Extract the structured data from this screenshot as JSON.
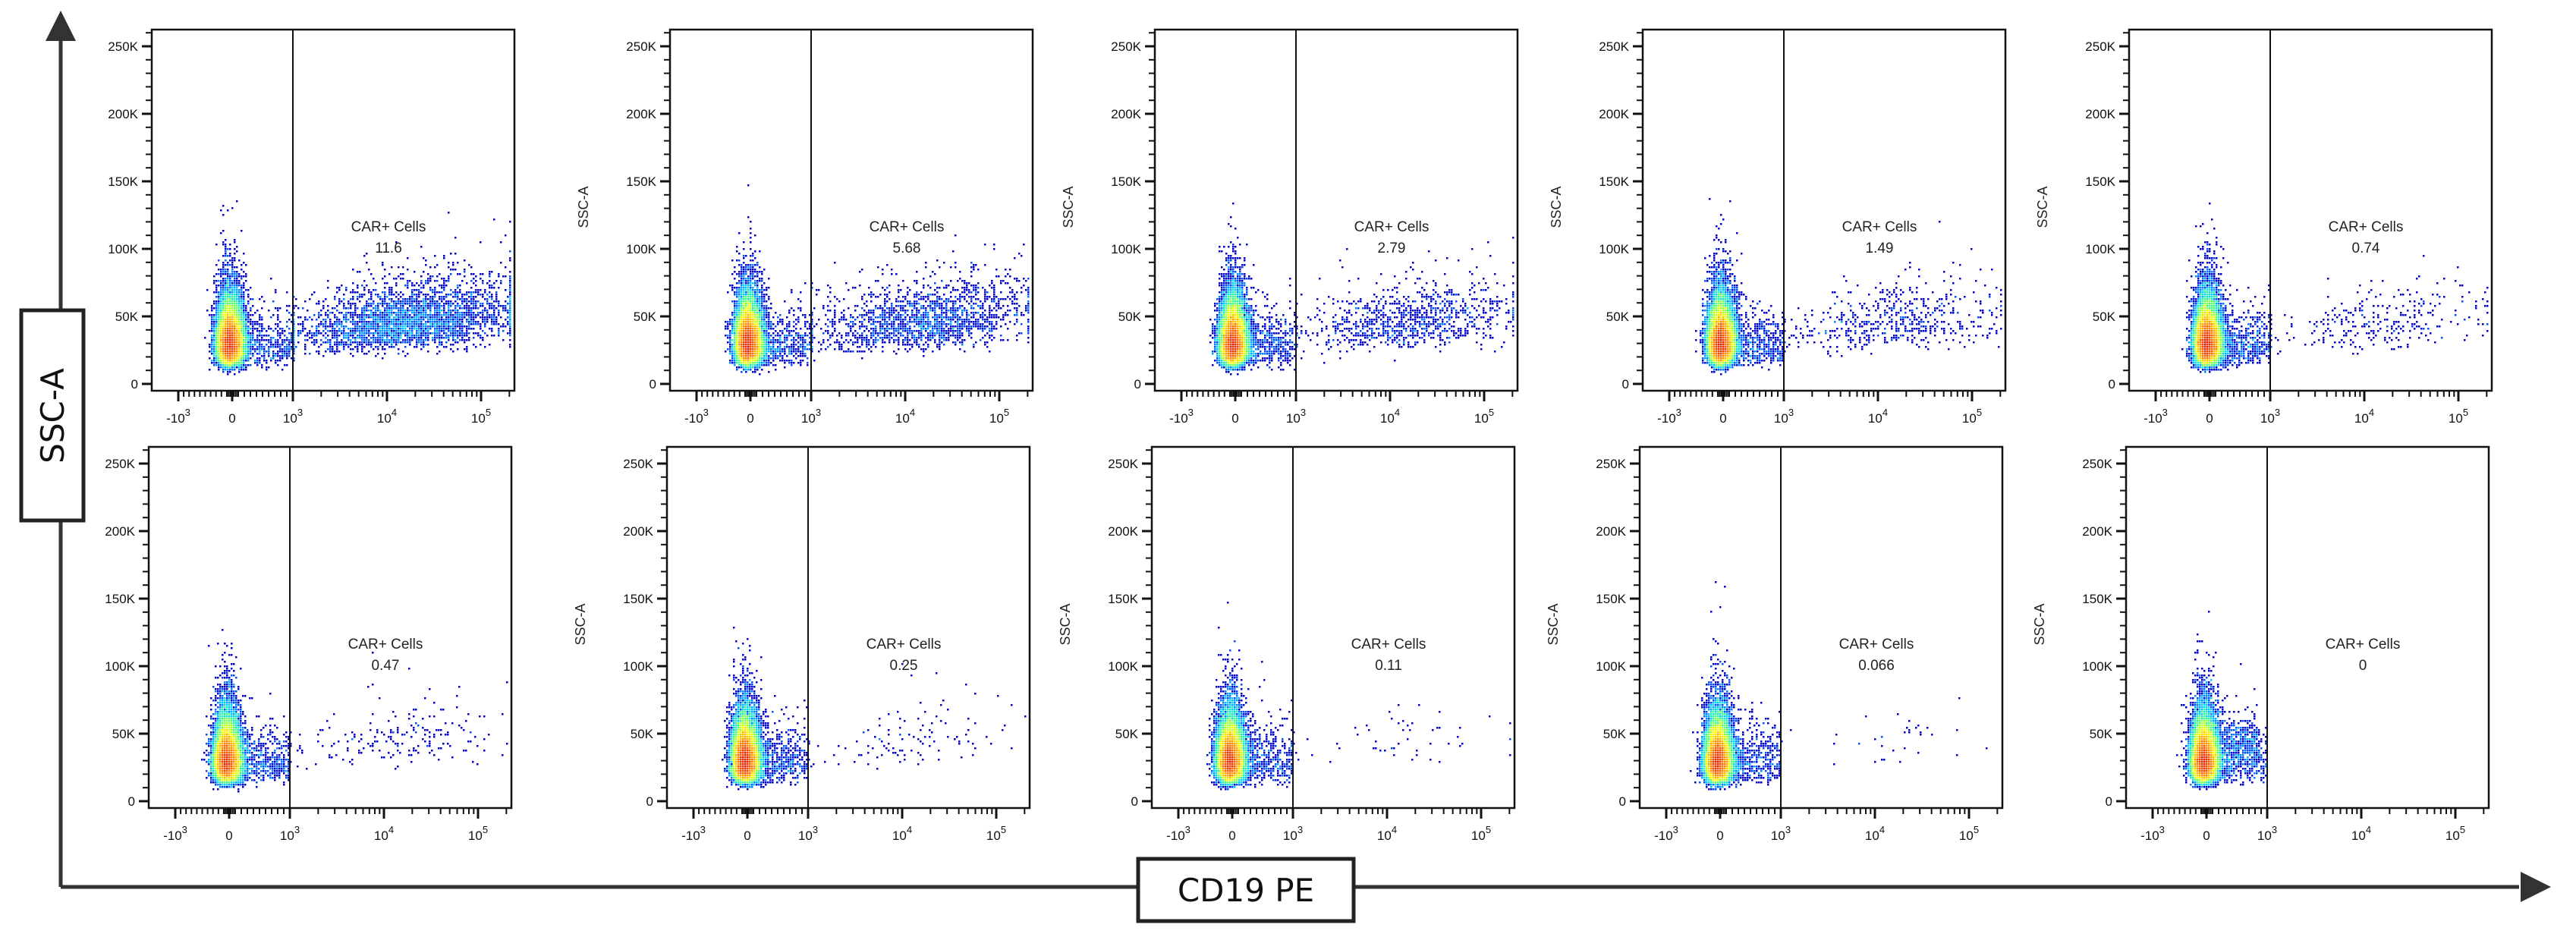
{
  "figure": {
    "y_axis_label": "SSC-A",
    "x_axis_label": "CD19 PE"
  },
  "chart_data": {
    "type": "scatter",
    "layout": "2 rows x 5 columns of flow cytometry density dot plots",
    "x_axis": {
      "label": "CD19 PE",
      "scale": "biexponential",
      "ticks": [
        {
          "base": "-10",
          "exp": "3",
          "value": -1000
        },
        {
          "base": "0",
          "exp": "",
          "value": 0
        },
        {
          "base": "10",
          "exp": "3",
          "value": 1000
        },
        {
          "base": "10",
          "exp": "4",
          "value": 10000
        },
        {
          "base": "10",
          "exp": "5",
          "value": 100000
        }
      ]
    },
    "y_axis": {
      "label": "SSC-A",
      "scale": "linear",
      "range": [
        0,
        262144
      ],
      "ticks": [
        {
          "label": "0",
          "value": 0
        },
        {
          "label": "50K",
          "value": 50000
        },
        {
          "label": "100K",
          "value": 100000
        },
        {
          "label": "150K",
          "value": 150000
        },
        {
          "label": "200K",
          "value": 200000
        },
        {
          "label": "250K",
          "value": 250000
        }
      ]
    },
    "gate": {
      "type": "vertical threshold",
      "x_value": 1000
    },
    "colormap": [
      "#0000c8",
      "#0060ff",
      "#00d0ff",
      "#40ff80",
      "#ffff00",
      "#ff8000",
      "#e00000"
    ],
    "panels": [
      {
        "gate_label": "CAR+ Cells",
        "gate_value": "11.6",
        "percent": 11.6
      },
      {
        "gate_label": "CAR+ Cells",
        "gate_value": "5.68",
        "percent": 5.68
      },
      {
        "gate_label": "CAR+ Cells",
        "gate_value": "2.79",
        "percent": 2.79
      },
      {
        "gate_label": "CAR+ Cells",
        "gate_value": "1.49",
        "percent": 1.49
      },
      {
        "gate_label": "CAR+ Cells",
        "gate_value": "0.74",
        "percent": 0.74
      },
      {
        "gate_label": "CAR+ Cells",
        "gate_value": "0.47",
        "percent": 0.47
      },
      {
        "gate_label": "CAR+ Cells",
        "gate_value": "0.25",
        "percent": 0.25
      },
      {
        "gate_label": "CAR+ Cells",
        "gate_value": "0.11",
        "percent": 0.11
      },
      {
        "gate_label": "CAR+ Cells",
        "gate_value": "0.066",
        "percent": 0.066
      },
      {
        "gate_label": "CAR+ Cells",
        "gate_value": "0",
        "percent": 0
      }
    ]
  }
}
